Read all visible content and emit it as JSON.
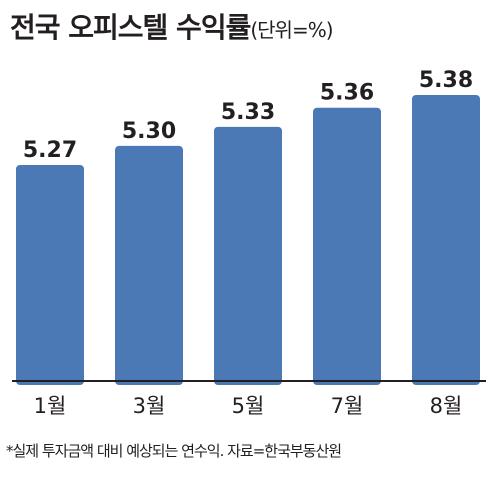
{
  "title": "전국 오피스텔 수익률",
  "unit": "(단위=%)",
  "footnote": "*실제 투자금액 대비 예상되는 연수익. 자료=한국부동산원",
  "chart_data": {
    "type": "bar",
    "title": "전국 오피스텔 수익률",
    "unit": "(단위=%)",
    "categories": [
      "1월",
      "3월",
      "5월",
      "7월",
      "8월"
    ],
    "values": [
      5.27,
      5.3,
      5.33,
      5.36,
      5.38
    ],
    "value_labels": [
      "5.27",
      "5.30",
      "5.33",
      "5.36",
      "5.38"
    ],
    "bar_color": "#4a79b5",
    "grid": false,
    "legend": "none"
  }
}
